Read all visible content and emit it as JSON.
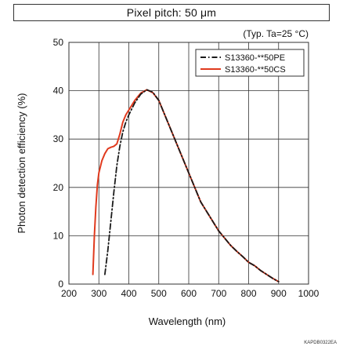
{
  "header": {
    "title": "Pixel pitch: 50 μm"
  },
  "footer": {
    "code": "KAPDB0322EA"
  },
  "colors": {
    "series_pe": "#1a1a1a",
    "series_cs": "#e03a1e",
    "grid": "#333333"
  },
  "chart_data": {
    "type": "line",
    "title": "Pixel pitch: 50 μm",
    "annotation": "(Typ. Ta=25 °C)",
    "xlabel": "Wavelength (nm)",
    "ylabel": "Photon detection efficiency (%)",
    "xlim": [
      200,
      1000
    ],
    "ylim": [
      0,
      50
    ],
    "xticks": [
      200,
      300,
      400,
      500,
      600,
      700,
      800,
      900,
      1000
    ],
    "yticks": [
      0,
      10,
      20,
      30,
      40,
      50
    ],
    "grid": true,
    "legend_position": "top-right",
    "series": [
      {
        "name": "S13360-**50PE",
        "style": "dash-dot",
        "color": "#1a1a1a",
        "x": [
          320,
          330,
          340,
          350,
          360,
          370,
          380,
          390,
          400,
          420,
          440,
          460,
          480,
          500,
          520,
          540,
          560,
          580,
          600,
          620,
          640,
          660,
          680,
          700,
          720,
          740,
          760,
          780,
          800,
          820,
          840,
          860,
          880,
          900
        ],
        "y": [
          2,
          7,
          13,
          19,
          24.5,
          28.5,
          31.5,
          33.5,
          35,
          37.5,
          39.3,
          40.2,
          39.7,
          38,
          35,
          32,
          29,
          26,
          23,
          20,
          17,
          15,
          13,
          11,
          9.5,
          8,
          6.8,
          5.7,
          4.5,
          3.8,
          2.8,
          2,
          1.2,
          0.5
        ]
      },
      {
        "name": "S13360-**50CS",
        "style": "solid",
        "color": "#e03a1e",
        "x": [
          280,
          285,
          290,
          295,
          300,
          310,
          320,
          330,
          340,
          350,
          360,
          370,
          380,
          390,
          400,
          420,
          440,
          460,
          480,
          500,
          520,
          540,
          560,
          580,
          600,
          620,
          640,
          660,
          680,
          700,
          720,
          740,
          760,
          780,
          800,
          820,
          840,
          860,
          880,
          900
        ],
        "y": [
          2,
          10,
          16,
          20.5,
          23,
          25.5,
          27,
          28,
          28.3,
          28.5,
          29,
          31,
          33.5,
          35,
          36,
          38,
          39.5,
          40.2,
          39.6,
          38,
          35,
          32,
          29,
          26,
          23,
          20,
          17,
          15,
          13,
          11,
          9.5,
          8,
          6.8,
          5.7,
          4.5,
          3.8,
          2.8,
          2,
          1.2,
          0.5
        ]
      }
    ]
  }
}
